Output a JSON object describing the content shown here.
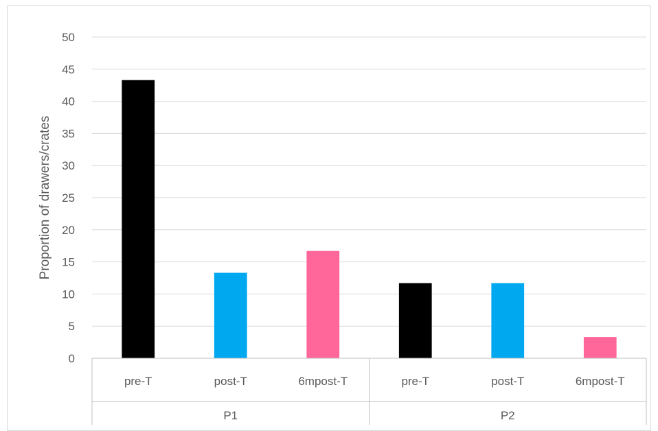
{
  "chart_data": {
    "type": "bar",
    "ylabel": "Proportion of drawers/crates",
    "ylim": [
      0,
      50
    ],
    "ytick_step": 5,
    "grid": true,
    "groups": [
      {
        "name": "P1",
        "bars": [
          {
            "label": "pre-T",
            "value": 43.3,
            "color": "#000000"
          },
          {
            "label": "post-T",
            "value": 13.3,
            "color": "#00a8f0"
          },
          {
            "label": "6mpost-T",
            "value": 16.7,
            "color": "#ff6699"
          }
        ]
      },
      {
        "name": "P2",
        "bars": [
          {
            "label": "pre-T",
            "value": 11.7,
            "color": "#000000"
          },
          {
            "label": "post-T",
            "value": 11.7,
            "color": "#00a8f0"
          },
          {
            "label": "6mpost-T",
            "value": 3.3,
            "color": "#ff6699"
          }
        ]
      }
    ]
  }
}
